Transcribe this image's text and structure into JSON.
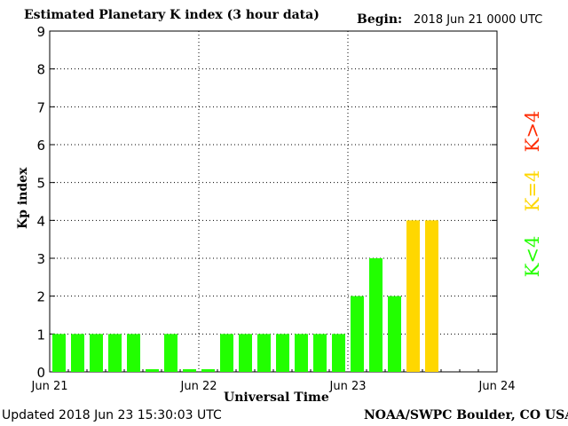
{
  "chart_data": {
    "type": "bar",
    "title": "Estimated Planetary K index (3 hour data)",
    "begin_label": "Begin:",
    "begin_value": "2018 Jun 21 0000 UTC",
    "xlabel": "Universal Time",
    "ylabel": "Kp index",
    "ylim": [
      0,
      9
    ],
    "yticks": [
      "0",
      "1",
      "2",
      "3",
      "4",
      "5",
      "6",
      "7",
      "8",
      "9"
    ],
    "xticks": [
      "Jun 21",
      "Jun 22",
      "Jun 23",
      "Jun 24"
    ],
    "grid": "dotted",
    "interval_hours": 3,
    "values": [
      1,
      1,
      1,
      1,
      1,
      0.07,
      1,
      0.07,
      0.07,
      1,
      1,
      1,
      1,
      1,
      1,
      1,
      2,
      3,
      2,
      4,
      4
    ],
    "colors": {
      "below": "#22ff00",
      "equal": "#ffd700",
      "above": "#ff2a00"
    },
    "legend": [
      {
        "text": "K<4",
        "color": "#22ff00"
      },
      {
        "text": "K=4",
        "color": "#ffd700"
      },
      {
        "text": "K>4",
        "color": "#ff2a00"
      }
    ]
  },
  "footer": {
    "updated": "Updated 2018 Jun 23 15:30:03 UTC",
    "source": "NOAA/SWPC Boulder, CO USA"
  }
}
